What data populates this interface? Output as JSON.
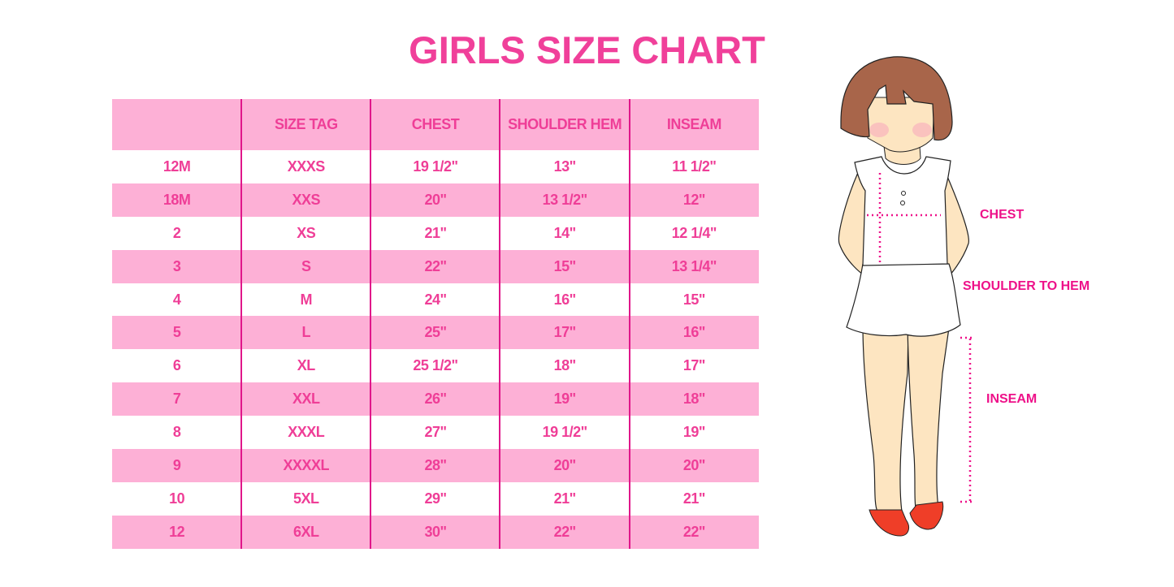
{
  "title": "GIRLS SIZE CHART",
  "colors": {
    "accent": "#f0409a",
    "row_pink": "#fdb0d6",
    "divider": "#e0168a"
  },
  "table": {
    "headers": [
      "",
      "SIZE TAG",
      "CHEST",
      "SHOULDER HEM",
      "INSEAM"
    ],
    "rows": [
      [
        "12M",
        "XXXS",
        "19 1/2\"",
        "13\"",
        "11 1/2\""
      ],
      [
        "18M",
        "XXS",
        "20\"",
        "13 1/2\"",
        "12\""
      ],
      [
        "2",
        "XS",
        "21\"",
        "14\"",
        "12 1/4\""
      ],
      [
        "3",
        "S",
        "22\"",
        "15\"",
        "13 1/4\""
      ],
      [
        "4",
        "M",
        "24\"",
        "16\"",
        "15\""
      ],
      [
        "5",
        "L",
        "25\"",
        "17\"",
        "16\""
      ],
      [
        "6",
        "XL",
        "25 1/2\"",
        "18\"",
        "17\""
      ],
      [
        "7",
        "XXL",
        "26\"",
        "19\"",
        "18\""
      ],
      [
        "8",
        "XXXL",
        "27\"",
        "19 1/2\"",
        "19\""
      ],
      [
        "9",
        "XXXXL",
        "28\"",
        "20\"",
        "20\""
      ],
      [
        "10",
        "5XL",
        "29\"",
        "21\"",
        "21\""
      ],
      [
        "12",
        "6XL",
        "30\"",
        "22\"",
        "22\""
      ]
    ]
  },
  "diagram": {
    "chest_label": "CHEST",
    "shoulder_label": "SHOULDER TO HEM",
    "inseam_label": "INSEAM"
  }
}
